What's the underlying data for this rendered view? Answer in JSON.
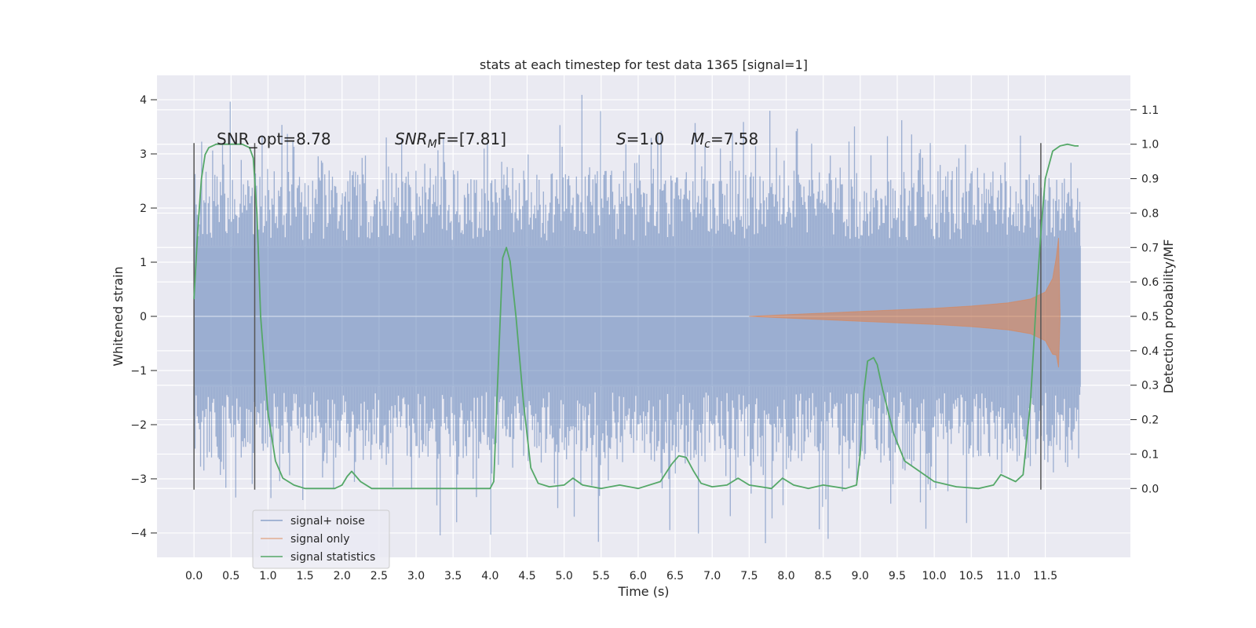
{
  "chart_data": {
    "type": "line",
    "title": "stats at each timestep for test data 1365 [signal=1]",
    "xlabel": "Time (s)",
    "ylabel": "Whitened strain",
    "ylabel_right": "Detection probability/MF",
    "xlim": [
      -0.5,
      12.65
    ],
    "ylim": [
      -4.45,
      4.45
    ],
    "ylim_right": [
      -0.2,
      1.2
    ],
    "x_ticks": [
      0.0,
      0.5,
      1.0,
      1.5,
      2.0,
      2.5,
      3.0,
      3.5,
      4.0,
      4.5,
      5.0,
      5.5,
      6.0,
      6.5,
      7.0,
      7.5,
      8.0,
      8.5,
      9.0,
      9.5,
      10.0,
      10.5,
      11.0,
      11.5
    ],
    "x_tick_labels": [
      "0.0",
      "0.5",
      "1.0",
      "1.5",
      "2.0",
      "2.5",
      "3.0",
      "3.5",
      "4.0",
      "4.5",
      "5.0",
      "5.5",
      "6.0",
      "6.5",
      "7.0",
      "7.5",
      "8.0",
      "8.5",
      "9.0",
      "9.5",
      "10.0",
      "10.5",
      "11.0",
      "11.5"
    ],
    "y_ticks": [
      -4,
      -3,
      -2,
      -1,
      0,
      1,
      2,
      3,
      4
    ],
    "y_tick_labels": [
      "−4",
      "−3",
      "−2",
      "−1",
      "0",
      "1",
      "2",
      "3",
      "4"
    ],
    "y_ticks_right": [
      0.0,
      0.1,
      0.2,
      0.3,
      0.4,
      0.5,
      0.6,
      0.7,
      0.8,
      0.9,
      1.0,
      1.1
    ],
    "y_tick_labels_right": [
      "0.0",
      "0.1",
      "0.2",
      "0.3",
      "0.4",
      "0.5",
      "0.6",
      "0.7",
      "0.8",
      "0.9",
      "1.0",
      "1.1"
    ],
    "grid": true,
    "legend_position": "lower-left",
    "annotations": {
      "snr_opt": "SNR_opt=8.78",
      "snr_mf_main": "SNR",
      "snr_mf_sub": "M",
      "snr_mf_rest": "F=[7.81]",
      "s_italic": "S",
      "s_rest": "=1.0",
      "mc_main": "M",
      "mc_sub": "c",
      "mc_rest": "=7.58"
    },
    "vertical_markers": [
      0.0,
      0.82,
      11.44
    ],
    "marker_range": [
      -3.2,
      3.2
    ],
    "series": [
      {
        "name": "signal+ noise",
        "color": "#4c72b0",
        "axis": "left",
        "x_range": [
          0.0,
          11.98
        ],
        "envelope_typical": 2.3,
        "envelope_peak": 4.1
      },
      {
        "name": "signal only",
        "color": "#dd8452",
        "axis": "left",
        "x": [
          7.5,
          8.0,
          8.5,
          9.0,
          9.5,
          10.0,
          10.5,
          11.0,
          11.3,
          11.5,
          11.6,
          11.65,
          11.68,
          11.7
        ],
        "amplitude": [
          0.0,
          0.03,
          0.06,
          0.09,
          0.12,
          0.15,
          0.19,
          0.25,
          0.32,
          0.45,
          0.7,
          1.1,
          1.45,
          0.0
        ]
      },
      {
        "name": "signal statistics",
        "color": "#55a868",
        "axis": "right",
        "x": [
          0.0,
          0.05,
          0.1,
          0.15,
          0.2,
          0.3,
          0.5,
          0.65,
          0.75,
          0.8,
          0.85,
          0.9,
          1.0,
          1.1,
          1.2,
          1.35,
          1.5,
          1.7,
          1.9,
          2.0,
          2.07,
          2.13,
          2.25,
          2.4,
          2.6,
          3.0,
          3.5,
          3.85,
          4.0,
          4.05,
          4.1,
          4.17,
          4.22,
          4.27,
          4.35,
          4.45,
          4.55,
          4.65,
          4.8,
          5.0,
          5.12,
          5.25,
          5.5,
          5.75,
          6.0,
          6.3,
          6.45,
          6.55,
          6.65,
          6.75,
          6.85,
          7.0,
          7.2,
          7.35,
          7.5,
          7.8,
          7.95,
          8.1,
          8.3,
          8.5,
          8.8,
          8.95,
          9.0,
          9.05,
          9.1,
          9.18,
          9.23,
          9.3,
          9.45,
          9.6,
          9.8,
          10.0,
          10.3,
          10.6,
          10.8,
          10.9,
          11.0,
          11.1,
          11.2,
          11.3,
          11.38,
          11.45,
          11.5,
          11.6,
          11.7,
          11.8,
          11.9,
          11.95
        ],
        "y": [
          0.55,
          0.75,
          0.9,
          0.97,
          0.99,
          1.0,
          1.0,
          1.0,
          0.99,
          0.96,
          0.8,
          0.5,
          0.22,
          0.08,
          0.03,
          0.01,
          0.0,
          0.0,
          0.0,
          0.01,
          0.035,
          0.05,
          0.02,
          0.0,
          0.0,
          0.0,
          0.0,
          0.0,
          0.0,
          0.02,
          0.3,
          0.67,
          0.7,
          0.66,
          0.5,
          0.25,
          0.06,
          0.015,
          0.005,
          0.01,
          0.03,
          0.01,
          0.0,
          0.01,
          0.0,
          0.02,
          0.07,
          0.095,
          0.09,
          0.05,
          0.015,
          0.005,
          0.01,
          0.03,
          0.01,
          0.0,
          0.03,
          0.01,
          0.0,
          0.01,
          0.0,
          0.01,
          0.1,
          0.28,
          0.37,
          0.38,
          0.36,
          0.29,
          0.16,
          0.08,
          0.05,
          0.02,
          0.005,
          0.0,
          0.01,
          0.04,
          0.03,
          0.02,
          0.04,
          0.25,
          0.55,
          0.77,
          0.9,
          0.98,
          0.995,
          1.0,
          0.995,
          0.995
        ]
      }
    ]
  }
}
